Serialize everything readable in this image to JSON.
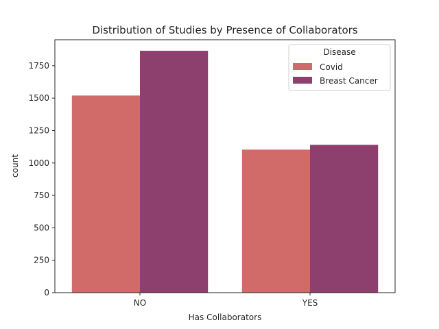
{
  "chart_data": {
    "type": "bar",
    "title": "Distribution of Studies by Presence of Collaborators",
    "xlabel": "Has Collaborators",
    "ylabel": "count",
    "categories": [
      "NO",
      "YES"
    ],
    "series": [
      {
        "name": "Covid",
        "values": [
          1520,
          1103
        ],
        "color": "#d16b6a"
      },
      {
        "name": "Breast Cancer",
        "values": [
          1865,
          1140
        ],
        "color": "#8d3f6d"
      }
    ],
    "ylim": [
      0,
      1950
    ],
    "yticks": [
      0,
      250,
      500,
      750,
      1000,
      1250,
      1500,
      1750
    ],
    "legend": {
      "title": "Disease",
      "position": "top-right"
    },
    "grid": false
  }
}
